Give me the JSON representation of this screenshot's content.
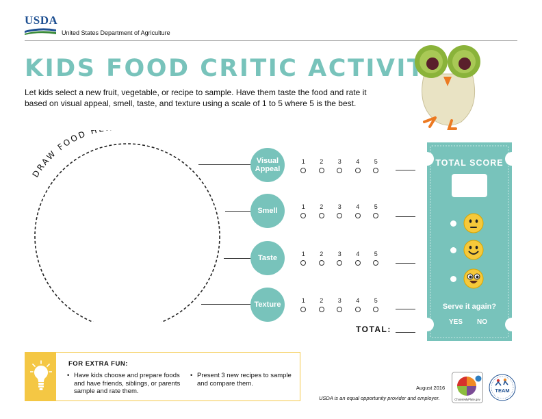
{
  "header": {
    "logo_text": "USDA",
    "department": "United States Department of Agriculture"
  },
  "title": "KIDS FOOD CRITIC ACTIVITY",
  "intro": "Let kids select a new fruit, vegetable, or recipe to sample. Have them taste the food and rate it based on visual appeal, smell, taste, and texture using a scale of 1 to 5 where 5 is the best.",
  "draw_prompt": "DRAW FOOD HERE!",
  "scale_numbers": [
    "1",
    "2",
    "3",
    "4",
    "5"
  ],
  "categories": [
    {
      "label_line1": "Visual",
      "label_line2": "Appeal"
    },
    {
      "label_line1": "Smell",
      "label_line2": ""
    },
    {
      "label_line1": "Taste",
      "label_line2": ""
    },
    {
      "label_line1": "Texture",
      "label_line2": ""
    }
  ],
  "total_label": "TOTAL:",
  "ticket": {
    "title": "TOTAL SCORE",
    "serve_question": "Serve it again?",
    "yes": "YES",
    "no": "NO",
    "faces": [
      "neutral-face-icon",
      "smiling-face-icon",
      "heart-eyes-face-icon"
    ]
  },
  "extra_fun": {
    "title": "FOR EXTRA FUN:",
    "items": [
      "Have kids choose and prepare foods and have friends, siblings, or parents sample and rate them.",
      "Present 3 new recipes to sample and compare them."
    ]
  },
  "footer": {
    "date": "August 2016",
    "equal_opportunity": "USDA is an equal opportunity provider and employer.",
    "myplate_text": "ChooseMyPlate.gov",
    "team_text": "TEAM"
  },
  "colors": {
    "teal": "#78c3bb",
    "yellow": "#f4c744",
    "usda_blue": "#1d4f91",
    "usda_green": "#3a8a3a"
  }
}
